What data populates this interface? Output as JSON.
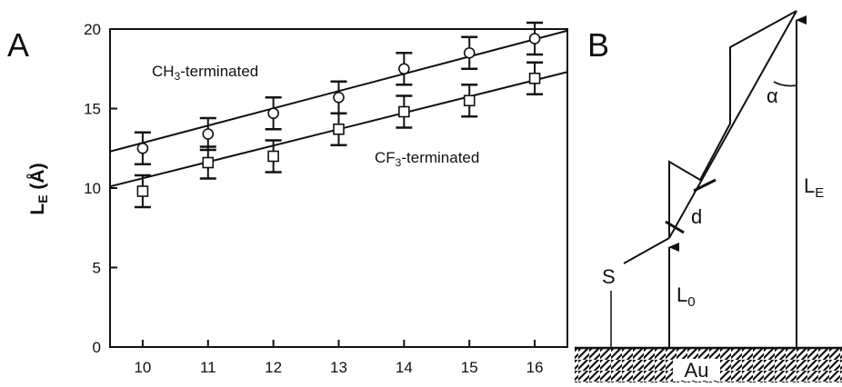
{
  "panels": {
    "a": "A",
    "b": "B"
  },
  "chart_data": {
    "type": "scatter",
    "title": "",
    "xlabel": "",
    "ylabel": {
      "main": "L",
      "sub": "E",
      "unit": " (Å)"
    },
    "xlim": [
      9.5,
      16.5
    ],
    "ylim": [
      0,
      20
    ],
    "x_ticks": [
      10,
      11,
      12,
      13,
      14,
      15,
      16
    ],
    "y_ticks": [
      0,
      5,
      10,
      15,
      20
    ],
    "grid": false,
    "legend": "none",
    "series": [
      {
        "name": "CH3-terminated",
        "label": {
          "pre": "CH",
          "sub": "3",
          "post": "-terminated"
        },
        "marker": "circle",
        "x": [
          10,
          11,
          12,
          13,
          14,
          15,
          16
        ],
        "y": [
          12.5,
          13.4,
          14.7,
          15.7,
          17.5,
          18.5,
          19.4
        ],
        "err": [
          1.0,
          1.0,
          1.0,
          1.0,
          1.0,
          1.0,
          1.0
        ],
        "fit": {
          "x": [
            9.5,
            16.5
          ],
          "y": [
            12.3,
            19.9
          ]
        }
      },
      {
        "name": "CF3-terminated",
        "label": {
          "pre": "CF",
          "sub": "3",
          "post": "-terminated"
        },
        "marker": "square",
        "x": [
          10,
          11,
          12,
          13,
          14,
          15,
          16
        ],
        "y": [
          9.8,
          11.6,
          12.0,
          13.7,
          14.8,
          15.5,
          16.9
        ],
        "err": [
          1.0,
          1.0,
          1.0,
          1.0,
          1.0,
          1.0,
          1.0
        ],
        "fit": {
          "x": [
            9.5,
            16.5
          ],
          "y": [
            10.1,
            17.3
          ]
        }
      }
    ]
  },
  "diagram": {
    "labels": {
      "s": "S",
      "d": "d",
      "alpha": "α",
      "le": {
        "main": "L",
        "sub": "E"
      },
      "l0": {
        "main": "L",
        "sub": "0"
      },
      "au": "Au"
    }
  }
}
